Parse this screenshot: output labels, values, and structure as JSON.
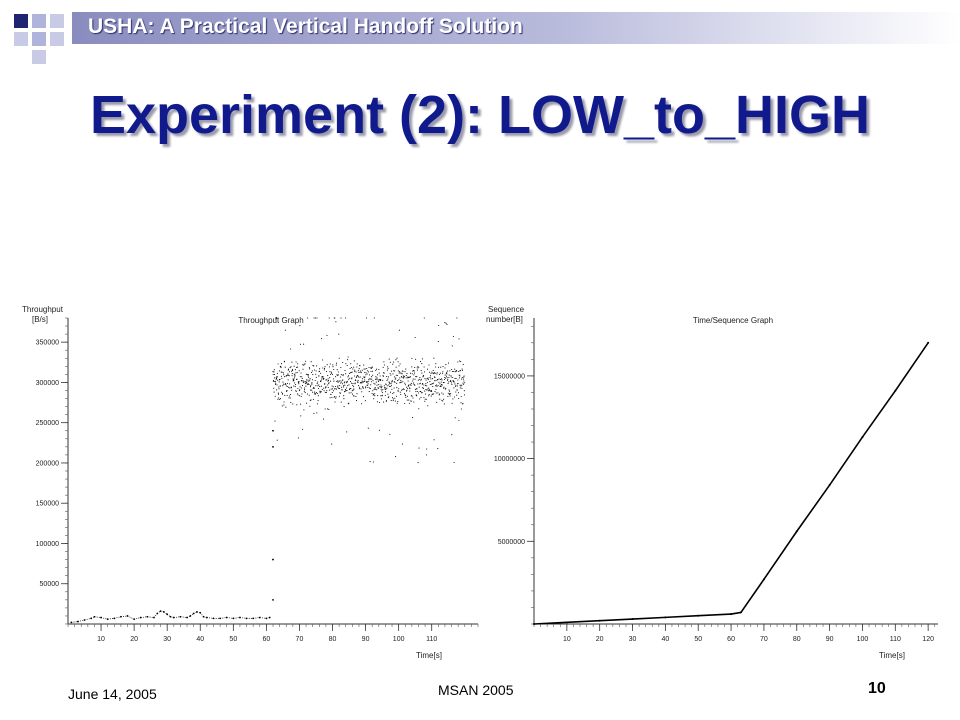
{
  "header": {
    "title": "USHA: A Practical Vertical Handoff Solution"
  },
  "slide": {
    "title": "Experiment (2): LOW_to_HIGH"
  },
  "footer": {
    "date": "June 14, 2005",
    "conference": "MSAN 2005",
    "page": "10"
  },
  "colors": {
    "header_gradient_start": "#8a8cbf",
    "title": "#101a8c",
    "deco_dark": "#1e2372",
    "deco_light": "#b0b3dc"
  },
  "chart_data": [
    {
      "type": "scatter",
      "title": "Throughput Graph",
      "ylabel": "Throughput [B/s]",
      "ylabel_lines": [
        "Throughput",
        "[B/s]"
      ],
      "xlabel": "Time[s]",
      "xlim": [
        0,
        124
      ],
      "ylim": [
        0,
        380000
      ],
      "xticks": [
        10,
        20,
        30,
        40,
        50,
        60,
        70,
        80,
        90,
        100,
        110
      ],
      "yticks": [
        50000,
        100000,
        150000,
        200000,
        250000,
        300000,
        350000
      ],
      "handoff_time": 62,
      "series": [
        {
          "phase": "before_handoff",
          "x": [
            1,
            3,
            5,
            7,
            8,
            10,
            12,
            14,
            16,
            18,
            20,
            22,
            24,
            26,
            27,
            28,
            29,
            30,
            31,
            32,
            34,
            36,
            37,
            38,
            39,
            40,
            41,
            42,
            44,
            46,
            48,
            50,
            52,
            54,
            56,
            58,
            60,
            61
          ],
          "y": [
            2000,
            3000,
            5000,
            7000,
            9000,
            8000,
            6000,
            7000,
            9000,
            10000,
            6000,
            8000,
            9000,
            8000,
            13000,
            16000,
            15000,
            12000,
            9000,
            8000,
            9000,
            8000,
            10000,
            13000,
            15000,
            14000,
            9000,
            8000,
            7000,
            7000,
            8000,
            7000,
            8000,
            7000,
            7000,
            8000,
            7000,
            8000
          ]
        },
        {
          "phase": "after_handoff",
          "x_range": [
            62,
            120
          ],
          "y_center": 300000,
          "y_spread": [
            200000,
            380000
          ],
          "transition_points": [
            [
              62,
              30000
            ],
            [
              62,
              80000
            ],
            [
              62,
              220000
            ],
            [
              62,
              240000
            ],
            [
              63,
              380000
            ]
          ]
        }
      ]
    },
    {
      "type": "line",
      "title": "Time/Sequence Graph",
      "ylabel": "Sequence number[B]",
      "ylabel_lines": [
        "Sequence",
        "number[B]"
      ],
      "xlabel": "Time[s]",
      "xlim": [
        0,
        123
      ],
      "ylim": [
        0,
        18500000
      ],
      "xticks": [
        10,
        20,
        30,
        40,
        50,
        60,
        70,
        80,
        90,
        100,
        110,
        120
      ],
      "yticks": [
        5000000,
        10000000,
        15000000
      ],
      "x": [
        0,
        10,
        20,
        30,
        40,
        50,
        60,
        63,
        70,
        80,
        90,
        100,
        110,
        120
      ],
      "y": [
        0,
        100000,
        200000,
        300000,
        400000,
        500000,
        600000,
        700000,
        2700000,
        5600000,
        8400000,
        11300000,
        14100000,
        17000000
      ]
    }
  ]
}
